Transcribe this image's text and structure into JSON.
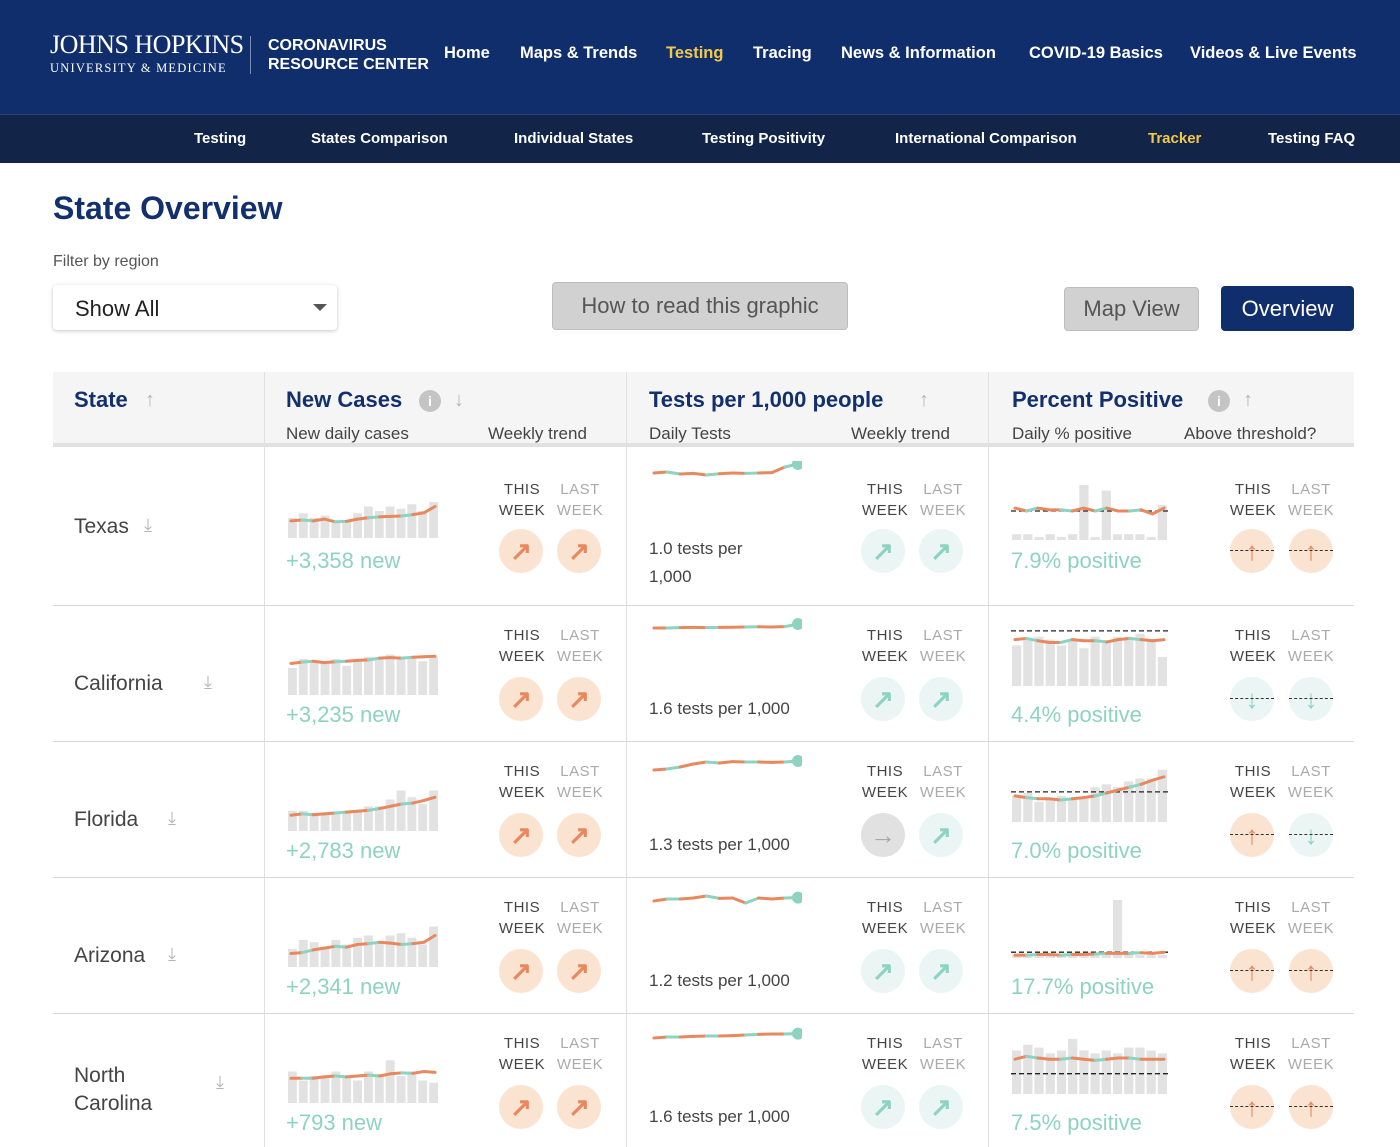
{
  "header": {
    "logo_line1": "JOHNS HOPKINS",
    "logo_line2": "UNIVERSITY & MEDICINE",
    "center_line1": "CORONAVIRUS",
    "center_line2": "RESOURCE CENTER",
    "nav": [
      "Home",
      "Maps & Trends",
      "Testing",
      "Tracing",
      "News & Information",
      "COVID-19 Basics",
      "Videos & Live Events"
    ],
    "active_nav": "Testing"
  },
  "subnav": {
    "items": [
      "Testing",
      "States Comparison",
      "Individual States",
      "Testing Positivity",
      "International Comparison",
      "Tracker",
      "Testing FAQ"
    ],
    "active": "Tracker"
  },
  "page": {
    "title": "State Overview",
    "filter_label": "Filter by region",
    "filter_value": "Show All",
    "how_to_read": "How to read this graphic",
    "map_view": "Map View",
    "overview": "Overview"
  },
  "table_header": {
    "state": "State",
    "new_cases": "New Cases",
    "new_cases_sub": "New daily cases",
    "weekly_trend": "Weekly trend",
    "tests": "Tests per 1,000 people",
    "tests_sub": "Daily Tests",
    "tests_trend": "Weekly trend",
    "positive": "Percent Positive",
    "positive_sub": "Daily % positive",
    "above": "Above threshold?",
    "info": "i"
  },
  "labels": {
    "this": "THIS",
    "last": "LAST",
    "week": "WEEK"
  },
  "colors": {
    "navy": "#102e6c",
    "subnav": "#122448",
    "orange": "#e8885f",
    "teal": "#8dd3c0",
    "gray_bar": "#e2e2e2",
    "accent_yellow": "#f1c94c"
  },
  "rows": [
    {
      "state": "Texas",
      "new_cases": "+3,358 new",
      "tests_text": "1.0 tests per 1,000",
      "positive": "7.9% positive",
      "case_trend_this": "up",
      "case_trend_last": "up",
      "test_trend_this": "up",
      "test_trend_last": "up",
      "pos_this": "above-up",
      "pos_last": "above-up",
      "case_bars": [
        0.45,
        0.55,
        0.45,
        0.5,
        0.35,
        0.4,
        0.55,
        0.7,
        0.6,
        0.7,
        0.65,
        0.75,
        0.6,
        0.8
      ],
      "case_line": [
        0.38,
        0.4,
        0.38,
        0.42,
        0.36,
        0.37,
        0.42,
        0.45,
        0.47,
        0.48,
        0.49,
        0.52,
        0.56,
        0.7
      ],
      "test_line": [
        0.4,
        0.45,
        0.35,
        0.38,
        0.3,
        0.36,
        0.4,
        0.38,
        0.4,
        0.42,
        0.7,
        0.85
      ],
      "pos_bars": [
        0.1,
        0.1,
        0.05,
        0.1,
        0.05,
        0.1,
        0.95,
        0.05,
        0.85,
        0.1,
        0.1,
        0.1,
        0.05,
        0.6
      ],
      "pos_line": [
        0.55,
        0.5,
        0.55,
        0.52,
        0.52,
        0.5,
        0.55,
        0.5,
        0.55,
        0.5,
        0.5,
        0.52,
        0.45,
        0.55
      ],
      "pos_threshold": 0.5
    },
    {
      "state": "California",
      "new_cases": "+3,235 new",
      "tests_text": "1.6 tests per 1,000",
      "positive": "4.4% positive",
      "case_trend_this": "up",
      "case_trend_last": "up",
      "test_trend_this": "up",
      "test_trend_last": "up",
      "pos_this": "below-down",
      "pos_last": "below-down",
      "case_bars": [
        0.6,
        0.8,
        0.75,
        0.7,
        0.8,
        0.65,
        0.75,
        0.85,
        0.8,
        0.9,
        0.8,
        0.85,
        0.75,
        0.85
      ],
      "case_line": [
        0.7,
        0.73,
        0.75,
        0.72,
        0.74,
        0.75,
        0.77,
        0.78,
        0.82,
        0.83,
        0.82,
        0.84,
        0.85,
        0.86
      ],
      "test_line": [
        0.5,
        0.5,
        0.52,
        0.53,
        0.52,
        0.53,
        0.54,
        0.55,
        0.56,
        0.55,
        0.57,
        0.7
      ],
      "pos_bars": [
        0.7,
        0.8,
        0.85,
        0.8,
        0.7,
        0.8,
        0.65,
        0.85,
        0.75,
        0.85,
        0.85,
        0.9,
        0.8,
        0.5
      ],
      "pos_line": [
        0.8,
        0.82,
        0.78,
        0.75,
        0.75,
        0.8,
        0.78,
        0.78,
        0.76,
        0.8,
        0.82,
        0.8,
        0.78,
        0.8
      ],
      "pos_threshold": 0.95
    },
    {
      "state": "Florida",
      "new_cases": "+2,783 new",
      "tests_text": "1.3 tests per 1,000",
      "positive": "7.0% positive",
      "case_trend_this": "up",
      "case_trend_last": "up",
      "test_trend_this": "flat",
      "test_trend_last": "up",
      "pos_this": "above-up",
      "pos_last": "below-down",
      "case_bars": [
        0.45,
        0.45,
        0.4,
        0.4,
        0.4,
        0.45,
        0.45,
        0.55,
        0.55,
        0.7,
        0.9,
        0.75,
        0.6,
        0.9
      ],
      "case_line": [
        0.35,
        0.38,
        0.36,
        0.38,
        0.4,
        0.42,
        0.44,
        0.46,
        0.5,
        0.55,
        0.6,
        0.62,
        0.68,
        0.75
      ],
      "test_line": [
        0.2,
        0.25,
        0.35,
        0.5,
        0.6,
        0.55,
        0.62,
        0.6,
        0.6,
        0.58,
        0.6,
        0.65
      ],
      "pos_bars": [
        0.45,
        0.5,
        0.35,
        0.4,
        0.45,
        0.4,
        0.4,
        0.6,
        0.65,
        0.6,
        0.7,
        0.75,
        0.75,
        0.9
      ],
      "pos_line": [
        0.45,
        0.42,
        0.4,
        0.4,
        0.38,
        0.4,
        0.42,
        0.45,
        0.5,
        0.55,
        0.6,
        0.65,
        0.72,
        0.78
      ],
      "pos_threshold": 0.52
    },
    {
      "state": "Arizona",
      "new_cases": "+2,341 new",
      "tests_text": "1.2 tests per 1,000",
      "positive": "17.7% positive",
      "case_trend_this": "up",
      "case_trend_last": "up",
      "test_trend_this": "up",
      "test_trend_last": "up",
      "pos_this": "above-up",
      "pos_last": "above-up",
      "case_bars": [
        0.4,
        0.6,
        0.55,
        0.45,
        0.6,
        0.5,
        0.65,
        0.7,
        0.55,
        0.7,
        0.75,
        0.65,
        0.5,
        0.9
      ],
      "case_line": [
        0.3,
        0.32,
        0.38,
        0.42,
        0.46,
        0.44,
        0.5,
        0.52,
        0.55,
        0.53,
        0.5,
        0.52,
        0.55,
        0.7
      ],
      "test_line": [
        0.45,
        0.55,
        0.55,
        0.6,
        0.7,
        0.58,
        0.6,
        0.35,
        0.6,
        0.55,
        0.6,
        0.62
      ],
      "pos_bars": [
        0.05,
        0.05,
        0.05,
        0.05,
        0.05,
        0.05,
        0.05,
        0.1,
        0.05,
        1.0,
        0.1,
        0.05,
        0.05,
        0.05
      ],
      "pos_line": [
        0.05,
        0.05,
        0.06,
        0.06,
        0.05,
        0.06,
        0.06,
        0.07,
        0.08,
        0.08,
        0.08,
        0.09,
        0.08,
        0.1
      ],
      "pos_threshold": 0.1
    },
    {
      "state": "North Carolina",
      "new_cases": "+793 new",
      "tests_text": "1.6 tests per 1,000",
      "positive": "7.5% positive",
      "case_trend_this": "up",
      "case_trend_last": "up",
      "test_trend_this": "up",
      "test_trend_last": "up",
      "pos_this": "above-up",
      "pos_last": "above-up",
      "case_bars": [
        0.7,
        0.5,
        0.6,
        0.55,
        0.7,
        0.6,
        0.5,
        0.7,
        0.65,
        0.95,
        0.6,
        0.7,
        0.5,
        0.45
      ],
      "case_line": [
        0.55,
        0.55,
        0.55,
        0.58,
        0.6,
        0.58,
        0.6,
        0.62,
        0.6,
        0.65,
        0.67,
        0.66,
        0.7,
        0.68
      ],
      "test_line": [
        0.4,
        0.45,
        0.45,
        0.48,
        0.5,
        0.5,
        0.52,
        0.55,
        0.58,
        0.6,
        0.6,
        0.62
      ],
      "pos_bars": [
        0.75,
        0.85,
        0.8,
        0.7,
        0.75,
        0.95,
        0.75,
        0.7,
        0.75,
        0.7,
        0.8,
        0.8,
        0.75,
        0.7
      ],
      "pos_line": [
        0.6,
        0.65,
        0.62,
        0.6,
        0.6,
        0.62,
        0.6,
        0.58,
        0.6,
        0.62,
        0.62,
        0.6,
        0.6,
        0.6
      ],
      "pos_threshold": 0.35
    }
  ]
}
